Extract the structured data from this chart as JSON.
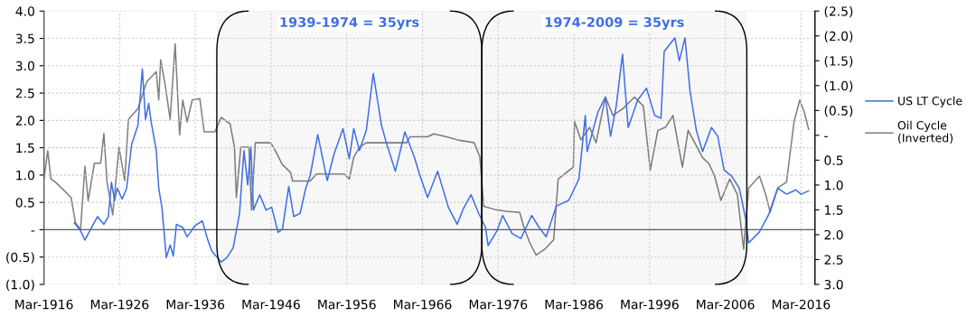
{
  "chart_data": {
    "type": "line",
    "xlim": [
      "1916-03",
      "2018-01"
    ],
    "xticks": [
      {
        "value": "1916-03",
        "label": "Mar-1916"
      },
      {
        "value": "1926-03",
        "label": "Mar-1926"
      },
      {
        "value": "1936-03",
        "label": "Mar-1936"
      },
      {
        "value": "1946-03",
        "label": "Mar-1946"
      },
      {
        "value": "1956-03",
        "label": "Mar-1956"
      },
      {
        "value": "1966-03",
        "label": "Mar-1966"
      },
      {
        "value": "1976-03",
        "label": "Mar-1976"
      },
      {
        "value": "1986-03",
        "label": "Mar-1986"
      },
      {
        "value": "1996-03",
        "label": "Mar-1996"
      },
      {
        "value": "2006-03",
        "label": "Mar-2006"
      },
      {
        "value": "2016-03",
        "label": "Mar-2016"
      }
    ],
    "ylim": [
      -1.0,
      4.0
    ],
    "yticks": [
      {
        "value": 4.0,
        "label": "4.0"
      },
      {
        "value": 3.5,
        "label": "3.5"
      },
      {
        "value": 3.0,
        "label": "3.0"
      },
      {
        "value": 2.5,
        "label": "2.5"
      },
      {
        "value": 2.0,
        "label": "2.0"
      },
      {
        "value": 1.5,
        "label": "1.5"
      },
      {
        "value": 1.0,
        "label": "1.0"
      },
      {
        "value": 0.5,
        "label": "0.5"
      },
      {
        "value": 0,
        "label": "-"
      },
      {
        "value": -0.5,
        "label": "(0.5)"
      },
      {
        "value": -1.0,
        "label": "(1.0)"
      }
    ],
    "y2lim": [
      3.0,
      -2.5
    ],
    "y2ticks": [
      {
        "value": -2.5,
        "label": "(2.5)"
      },
      {
        "value": -2.0,
        "label": "(2.0)"
      },
      {
        "value": -1.5,
        "label": "(1.5)"
      },
      {
        "value": -1.0,
        "label": "(1.0)"
      },
      {
        "value": -0.5,
        "label": "(0.5)"
      },
      {
        "value": 0,
        "label": "-"
      },
      {
        "value": 0.5,
        "label": "0.5"
      },
      {
        "value": 1.0,
        "label": "1.0"
      },
      {
        "value": 1.5,
        "label": "1.5"
      },
      {
        "value": 2.0,
        "label": "2.0"
      },
      {
        "value": 2.5,
        "label": "2.5"
      },
      {
        "value": 3.0,
        "label": "3.0"
      }
    ],
    "grid": true,
    "legend": "right",
    "marker": "none",
    "line_style": "solid",
    "ref_lines": [
      {
        "axis": "y",
        "value": 0,
        "color": "#595959",
        "line_style": "solid"
      }
    ],
    "bands": [
      {
        "axis": "x",
        "from": "1939-01",
        "to": "1974-01",
        "label": "1939-1974 = 35yrs",
        "color": "#000000"
      },
      {
        "axis": "x",
        "from": "1974-01",
        "to": "2009-01",
        "label": "1974-2009 = 35yrs",
        "color": "#000000"
      }
    ],
    "series": [
      {
        "name": "US LT Cycle",
        "color": "#3f6ee6",
        "x": [
          "1920-03",
          "1921-01",
          "1921-08",
          "1922-05",
          "1923-04",
          "1924-02",
          "1924-09",
          "1925-02",
          "1925-07",
          "1925-11",
          "1926-07",
          "1927-02",
          "1927-10",
          "1928-08",
          "1929-03",
          "1929-08",
          "1930-01",
          "1930-05",
          "1931-01",
          "1931-05",
          "1931-10",
          "1932-05",
          "1932-11",
          "1933-04",
          "1933-09",
          "1934-07",
          "1935-02",
          "1936-02",
          "1937-02",
          "1937-10",
          "1938-05",
          "1939-08",
          "1940-05",
          "1941-03",
          "1942-01",
          "1942-08",
          "1943-02",
          "1943-07",
          "1943-11",
          "1944-09",
          "1945-07",
          "1946-04",
          "1947-02",
          "1947-09",
          "1948-07",
          "1949-03",
          "1950-01",
          "1950-10",
          "1951-05",
          "1952-05",
          "1953-08",
          "1954-07",
          "1955-09",
          "1956-07",
          "1957-02",
          "1957-11",
          "1958-10",
          "1959-09",
          "1960-10",
          "1961-05",
          "1962-08",
          "1963-11",
          "1965-02",
          "1965-11",
          "1966-11",
          "1968-03",
          "1969-08",
          "1970-10",
          "1971-08",
          "1972-08",
          "1973-08",
          "1974-07",
          "1974-11",
          "1976-01",
          "1976-10",
          "1978-01",
          "1979-03",
          "1980-08",
          "1981-08",
          "1982-07",
          "1983-11",
          "1985-07",
          "1986-11",
          "1987-09",
          "1987-12",
          "1989-05",
          "1990-05",
          "1991-01",
          "1991-10",
          "1992-08",
          "1993-05",
          "1994-08",
          "1995-10",
          "1996-11",
          "1997-09",
          "1998-02",
          "1999-07",
          "2000-02",
          "2000-11",
          "2001-07",
          "2002-05",
          "2003-03",
          "2004-05",
          "2005-03",
          "2006-01",
          "2007-01",
          "2008-01",
          "2008-11",
          "2009-04",
          "2010-09",
          "2011-11",
          "2013-02",
          "2014-04",
          "2015-07",
          "2016-03",
          "2017-03"
        ],
        "values": [
          0.13,
          -0.02,
          -0.19,
          0.01,
          0.24,
          0.1,
          0.24,
          0.87,
          0.53,
          0.76,
          0.56,
          0.76,
          1.56,
          1.91,
          2.94,
          2.02,
          2.31,
          1.97,
          1.45,
          0.76,
          0.41,
          -0.51,
          -0.28,
          -0.48,
          0.1,
          0.04,
          -0.13,
          0.07,
          0.16,
          -0.16,
          -0.39,
          -0.59,
          -0.51,
          -0.33,
          0.3,
          1.45,
          0.82,
          1.51,
          0.36,
          0.64,
          0.36,
          0.41,
          -0.05,
          0.01,
          0.79,
          0.24,
          0.3,
          0.76,
          0.99,
          1.74,
          0.9,
          1.39,
          1.85,
          1.3,
          1.85,
          1.45,
          1.82,
          2.86,
          1.91,
          1.62,
          1.07,
          1.79,
          1.33,
          0.99,
          0.59,
          1.07,
          0.41,
          0.1,
          0.39,
          0.64,
          0.3,
          0.04,
          -0.29,
          -0.02,
          0.26,
          -0.07,
          -0.16,
          0.26,
          0.04,
          -0.13,
          0.43,
          0.54,
          0.93,
          2.09,
          1.43,
          2.15,
          2.43,
          1.71,
          2.26,
          3.21,
          1.87,
          2.37,
          2.59,
          2.09,
          2.04,
          3.26,
          3.51,
          3.09,
          3.51,
          2.54,
          1.82,
          1.43,
          1.87,
          1.71,
          1.09,
          0.98,
          0.76,
          0.21,
          -0.24,
          -0.04,
          0.26,
          0.76,
          0.65,
          0.73,
          0.65,
          0.71
        ]
      },
      {
        "name": "Oil Cycle\n(Inverted)",
        "color": "#7f7f7f",
        "axis": "y2",
        "x": [
          "1916-03",
          "1916-09",
          "1917-02",
          "1917-09",
          "1918-10",
          "1919-10",
          "1920-05",
          "1921-01",
          "1921-08",
          "1922-01",
          "1922-11",
          "1923-09",
          "1924-02",
          "1924-07",
          "1925-04",
          "1926-02",
          "1926-11",
          "1927-05",
          "1928-08",
          "1929-10",
          "1931-01",
          "1931-05",
          "1931-08",
          "1932-03",
          "1932-11",
          "1933-07",
          "1934-02",
          "1934-07",
          "1935-02",
          "1935-10",
          "1936-10",
          "1937-05",
          "1938-10",
          "1939-08",
          "1940-10",
          "1941-05",
          "1941-08",
          "1942-03",
          "1943-04",
          "1943-08",
          "1944-02",
          "1946-02",
          "1946-07",
          "1947-09",
          "1948-10",
          "1949-01",
          "1951-05",
          "1952-03",
          "1955-11",
          "1956-07",
          "1957-02",
          "1957-11",
          "1958-10",
          "1964-02",
          "1964-07",
          "1966-11",
          "1967-09",
          "1969-05",
          "1971-01",
          "1973-01",
          "1973-10",
          "1974-04",
          "1975-09",
          "1977-03",
          "1979-01",
          "1979-08",
          "1980-05",
          "1981-03",
          "1982-05",
          "1983-07",
          "1984-02",
          "1985-02",
          "1986-02",
          "1986-04",
          "1987-02",
          "1988-04",
          "1989-02",
          "1990-05",
          "1991-05",
          "1992-08",
          "1994-03",
          "1995-05",
          "1996-04",
          "1997-04",
          "1998-04",
          "1999-04",
          "1999-09",
          "2000-07",
          "2001-04",
          "2002-05",
          "2003-03",
          "2004-01",
          "2004-10",
          "2005-08",
          "2006-10",
          "2007-10",
          "2008-08",
          "2009-04",
          "2010-09",
          "2011-07",
          "2012-02",
          "2013-02",
          "2014-04",
          "2015-04",
          "2016-01",
          "2016-08",
          "2017-03"
        ],
        "values": [
          0.88,
          0.31,
          0.88,
          0.94,
          1.1,
          1.25,
          1.76,
          1.89,
          0.62,
          1.32,
          0.56,
          0.56,
          -0.04,
          0.94,
          1.6,
          0.24,
          0.91,
          -0.32,
          -0.54,
          -1.08,
          -1.28,
          -0.71,
          -1.52,
          -1.03,
          -0.32,
          -1.84,
          -0.01,
          -0.71,
          -0.27,
          -0.71,
          -0.74,
          -0.07,
          -0.07,
          -0.36,
          -0.23,
          0.24,
          1.25,
          0.24,
          0.24,
          1.5,
          0.15,
          0.15,
          0.24,
          0.59,
          0.75,
          0.92,
          0.92,
          0.78,
          0.78,
          0.88,
          0.44,
          0.24,
          0.15,
          0.15,
          0.03,
          0.03,
          -0.03,
          0.03,
          0.1,
          0.15,
          0.44,
          1.43,
          1.49,
          1.53,
          1.55,
          1.86,
          2.16,
          2.41,
          2.29,
          2.1,
          0.88,
          0.76,
          0.64,
          -0.28,
          0.09,
          -0.16,
          0.15,
          -0.77,
          -0.4,
          -0.53,
          -0.77,
          -0.59,
          0.7,
          -0.1,
          -0.16,
          -0.4,
          -0.04,
          0.64,
          -0.1,
          0.21,
          0.45,
          0.57,
          0.82,
          1.31,
          0.88,
          1.19,
          2.29,
          1.06,
          0.82,
          1.19,
          1.55,
          1.06,
          0.94,
          -0.28,
          -0.71,
          -0.47,
          -0.12
        ]
      }
    ]
  }
}
